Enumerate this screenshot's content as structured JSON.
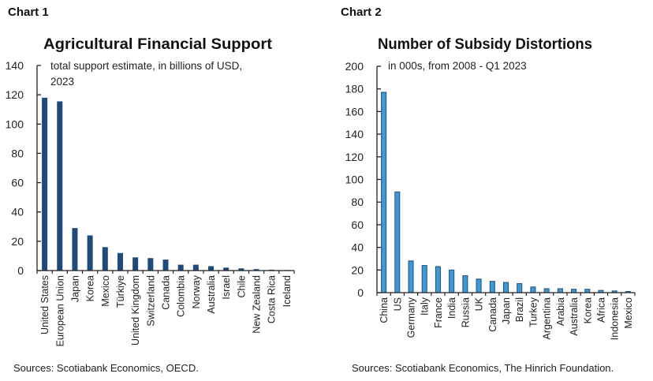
{
  "chart_data": [
    {
      "type": "bar",
      "label": "Chart 1",
      "title": "Agricultural Financial Support",
      "subtitle": "total support estimate, in billions of USD, 2023",
      "subtitle_lines": [
        "total support estimate, in billions of USD,",
        "2023"
      ],
      "source": "Sources: Scotiabank Economics, OECD.",
      "categories": [
        "United States",
        "European Union",
        "Japan",
        "Korea",
        "Mexico",
        "Türkiye",
        "United Kingdom",
        "Switzerland",
        "Canada",
        "Colombia",
        "Norway",
        "Australia",
        "Israel",
        "Chile",
        "New Zealand",
        "Costa Rica",
        "Iceland"
      ],
      "values": [
        118,
        115.5,
        29,
        24,
        16,
        12,
        9,
        8.5,
        7.5,
        4,
        4,
        3,
        2,
        1.5,
        1,
        0.6,
        0.4
      ],
      "ylim": [
        0,
        140
      ],
      "yticks": [
        0,
        20,
        40,
        60,
        80,
        100,
        120,
        140
      ],
      "grid": false,
      "color": "#1f4a7c"
    },
    {
      "type": "bar",
      "label": "Chart 2",
      "title": "Number of Subsidy Distortions",
      "subtitle": "in 000s,  from 2008 - Q1 2023",
      "subtitle_lines": [
        "in 000s,  from 2008 - Q1 2023"
      ],
      "source": "Sources: Scotiabank Economics, The Hinrich Foundation.",
      "categories": [
        "China",
        "US",
        "Germany",
        "Italy",
        "France",
        "India",
        "Russia",
        "UK",
        "Canada",
        "Japan",
        "Brazil",
        "Turkey",
        "Argentina",
        "Arabia",
        "Australia",
        "Korea",
        "Africa",
        "Indonesia",
        "Mexico"
      ],
      "values": [
        177,
        89,
        28,
        24,
        23,
        20,
        15,
        12,
        10,
        9,
        8,
        5,
        3.5,
        3.5,
        3,
        3,
        2,
        1.5,
        1
      ],
      "ylim": [
        0,
        200
      ],
      "yticks": [
        0,
        20,
        40,
        60,
        80,
        100,
        120,
        140,
        160,
        180,
        200
      ],
      "grid": false,
      "color": "#3d9ad6",
      "outline_color": "#1f4e79"
    }
  ]
}
